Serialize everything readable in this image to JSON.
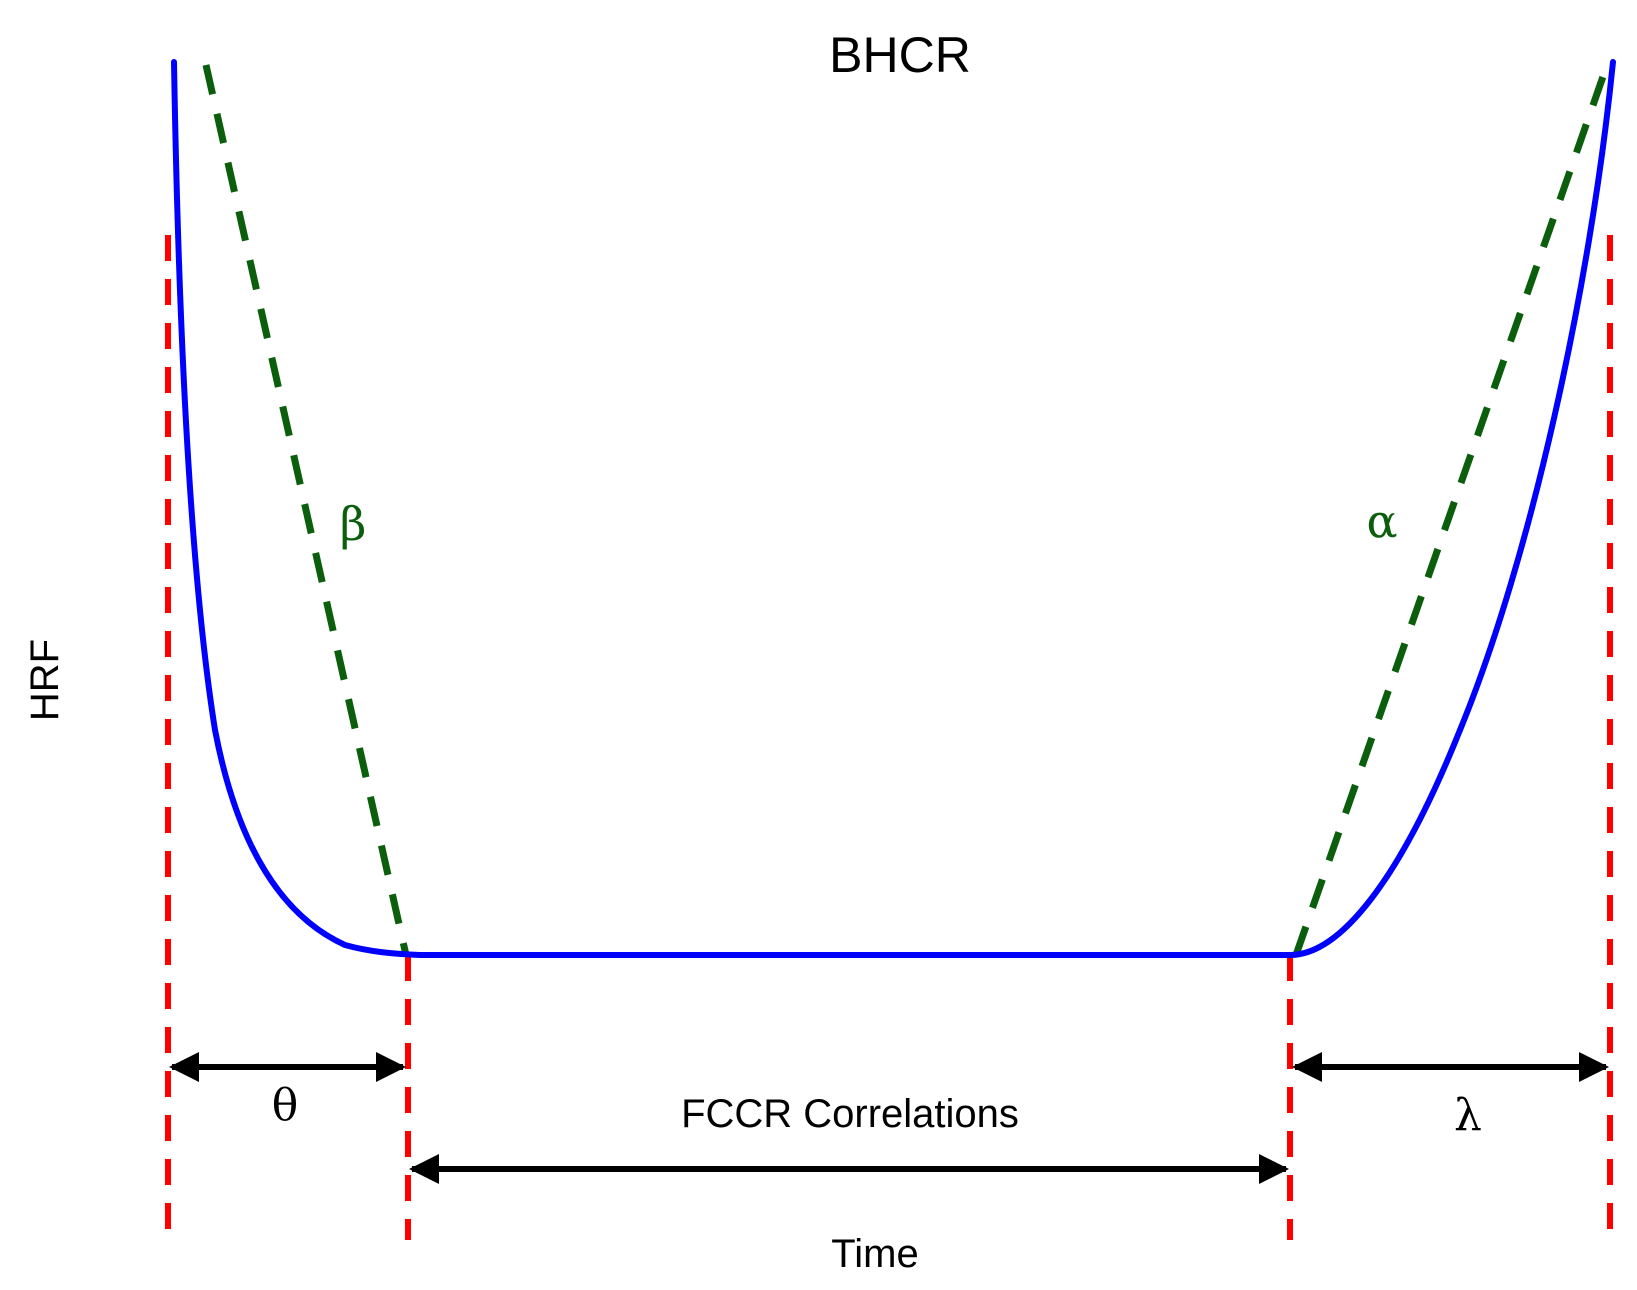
{
  "title": "BHCR",
  "xlabel": "Time",
  "ylabel": "HRF",
  "labels": {
    "beta": "β",
    "alpha": "α",
    "theta": "θ",
    "lambda": "λ",
    "fccr": "FCCR Correlations"
  },
  "colors": {
    "curve": "#0000ff",
    "tangent": "#0b5e0b",
    "boundary": "#ff0000",
    "arrow": "#000000",
    "text": "#000000"
  }
}
